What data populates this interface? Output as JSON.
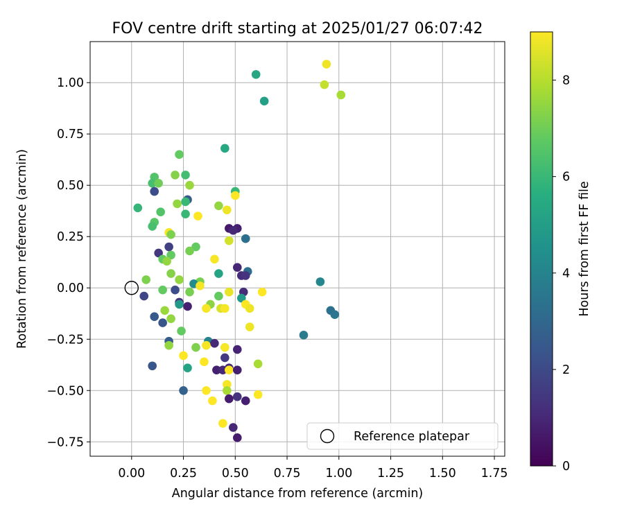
{
  "chart_data": {
    "type": "scatter",
    "title": "FOV centre drift starting at 2025/01/27 06:07:42",
    "xlabel": "Angular distance from reference (arcmin)",
    "ylabel": "Rotation from reference (arcmin)",
    "colorbar_label": "Hours from first FF file",
    "xlim": [
      -0.2,
      1.8
    ],
    "ylim": [
      -0.82,
      1.2
    ],
    "clim": [
      0,
      9
    ],
    "grid": true,
    "legend_position": "lower-right",
    "colormap": "viridis",
    "xticks": [
      0.0,
      0.25,
      0.5,
      0.75,
      1.0,
      1.25,
      1.5,
      1.75
    ],
    "xtick_labels": [
      "0.00",
      "0.25",
      "0.50",
      "0.75",
      "1.00",
      "1.25",
      "1.50",
      "1.75"
    ],
    "yticks": [
      -0.75,
      -0.5,
      -0.25,
      0.0,
      0.25,
      0.5,
      0.75,
      1.0
    ],
    "ytick_labels": [
      "−0.75",
      "−0.50",
      "−0.25",
      "0.00",
      "0.25",
      "0.50",
      "0.75",
      "1.00"
    ],
    "cticks": [
      0,
      2,
      4,
      6,
      8
    ],
    "ctick_labels": [
      "0",
      "2",
      "4",
      "6",
      "8"
    ],
    "reference": {
      "label": "Reference platepar",
      "x": 0.0,
      "y": 0.0
    },
    "points": [
      {
        "x": 0.94,
        "y": 1.09,
        "c": 8.8
      },
      {
        "x": 0.93,
        "y": 0.99,
        "c": 8.2
      },
      {
        "x": 1.01,
        "y": 0.94,
        "c": 7.8
      },
      {
        "x": 0.6,
        "y": 1.04,
        "c": 5.3
      },
      {
        "x": 0.64,
        "y": 0.91,
        "c": 5.1
      },
      {
        "x": 0.45,
        "y": 0.68,
        "c": 5.4
      },
      {
        "x": 0.23,
        "y": 0.65,
        "c": 6.8
      },
      {
        "x": 0.21,
        "y": 0.55,
        "c": 7.3
      },
      {
        "x": 0.26,
        "y": 0.55,
        "c": 6.2
      },
      {
        "x": 0.11,
        "y": 0.54,
        "c": 6.5
      },
      {
        "x": 0.1,
        "y": 0.51,
        "c": 6.3
      },
      {
        "x": 0.13,
        "y": 0.51,
        "c": 7.0
      },
      {
        "x": 0.28,
        "y": 0.5,
        "c": 7.6
      },
      {
        "x": 0.5,
        "y": 0.47,
        "c": 6.0
      },
      {
        "x": 0.11,
        "y": 0.47,
        "c": 2.1
      },
      {
        "x": 0.5,
        "y": 0.45,
        "c": 9.0
      },
      {
        "x": 0.27,
        "y": 0.43,
        "c": 2.6
      },
      {
        "x": 0.26,
        "y": 0.42,
        "c": 6.0
      },
      {
        "x": 0.22,
        "y": 0.41,
        "c": 7.5
      },
      {
        "x": 0.42,
        "y": 0.4,
        "c": 7.5
      },
      {
        "x": 0.03,
        "y": 0.39,
        "c": 5.9
      },
      {
        "x": 0.46,
        "y": 0.38,
        "c": 8.8
      },
      {
        "x": 0.14,
        "y": 0.37,
        "c": 6.5
      },
      {
        "x": 0.26,
        "y": 0.36,
        "c": 6.0
      },
      {
        "x": 0.32,
        "y": 0.35,
        "c": 9.0
      },
      {
        "x": 0.11,
        "y": 0.32,
        "c": 6.6
      },
      {
        "x": 0.1,
        "y": 0.3,
        "c": 6.3
      },
      {
        "x": 0.47,
        "y": 0.29,
        "c": 0.6
      },
      {
        "x": 0.51,
        "y": 0.29,
        "c": 0.8
      },
      {
        "x": 0.49,
        "y": 0.28,
        "c": 1.0
      },
      {
        "x": 0.18,
        "y": 0.27,
        "c": 8.9
      },
      {
        "x": 0.19,
        "y": 0.26,
        "c": 7.2
      },
      {
        "x": 0.55,
        "y": 0.24,
        "c": 3.3
      },
      {
        "x": 0.47,
        "y": 0.23,
        "c": 8.4
      },
      {
        "x": 0.31,
        "y": 0.2,
        "c": 6.8
      },
      {
        "x": 0.18,
        "y": 0.2,
        "c": 1.7
      },
      {
        "x": 0.28,
        "y": 0.18,
        "c": 7.1
      },
      {
        "x": 0.13,
        "y": 0.17,
        "c": 1.4
      },
      {
        "x": 0.19,
        "y": 0.16,
        "c": 6.8
      },
      {
        "x": 0.15,
        "y": 0.14,
        "c": 6.8
      },
      {
        "x": 0.17,
        "y": 0.13,
        "c": 7.5
      },
      {
        "x": 0.4,
        "y": 0.14,
        "c": 8.9
      },
      {
        "x": 0.51,
        "y": 0.1,
        "c": 1.0
      },
      {
        "x": 0.56,
        "y": 0.08,
        "c": 3.2
      },
      {
        "x": 0.19,
        "y": 0.07,
        "c": 7.3
      },
      {
        "x": 0.42,
        "y": 0.07,
        "c": 5.2
      },
      {
        "x": 0.53,
        "y": 0.06,
        "c": 1.1
      },
      {
        "x": 0.55,
        "y": 0.06,
        "c": 1.3
      },
      {
        "x": 0.07,
        "y": 0.04,
        "c": 7.2
      },
      {
        "x": 0.23,
        "y": 0.04,
        "c": 7.5
      },
      {
        "x": 0.33,
        "y": 0.03,
        "c": 7.1
      },
      {
        "x": 0.3,
        "y": 0.02,
        "c": 4.3
      },
      {
        "x": 0.33,
        "y": 0.01,
        "c": 8.9
      },
      {
        "x": 0.91,
        "y": 0.03,
        "c": 4.1
      },
      {
        "x": 0.15,
        "y": -0.01,
        "c": 6.8
      },
      {
        "x": 0.21,
        "y": -0.01,
        "c": 2.1
      },
      {
        "x": 0.28,
        "y": -0.02,
        "c": 7.1
      },
      {
        "x": 0.47,
        "y": -0.02,
        "c": 8.7
      },
      {
        "x": 0.54,
        "y": -0.02,
        "c": 1.1
      },
      {
        "x": 0.63,
        "y": -0.02,
        "c": 9.0
      },
      {
        "x": 0.06,
        "y": -0.04,
        "c": 1.9
      },
      {
        "x": 0.42,
        "y": -0.04,
        "c": 6.8
      },
      {
        "x": 0.53,
        "y": -0.05,
        "c": 4.8
      },
      {
        "x": 0.23,
        "y": -0.07,
        "c": 1.3
      },
      {
        "x": 0.23,
        "y": -0.08,
        "c": 4.8
      },
      {
        "x": 0.38,
        "y": -0.08,
        "c": 7.4
      },
      {
        "x": 0.55,
        "y": -0.08,
        "c": 9.0
      },
      {
        "x": 0.27,
        "y": -0.09,
        "c": 0.8
      },
      {
        "x": 0.57,
        "y": -0.1,
        "c": 8.8
      },
      {
        "x": 0.36,
        "y": -0.1,
        "c": 8.9
      },
      {
        "x": 0.43,
        "y": -0.1,
        "c": 8.5
      },
      {
        "x": 0.45,
        "y": -0.1,
        "c": 8.9
      },
      {
        "x": 0.16,
        "y": -0.11,
        "c": 7.6
      },
      {
        "x": 0.96,
        "y": -0.11,
        "c": 3.3
      },
      {
        "x": 0.98,
        "y": -0.13,
        "c": 3.5
      },
      {
        "x": 0.11,
        "y": -0.14,
        "c": 2.5
      },
      {
        "x": 0.19,
        "y": -0.15,
        "c": 7.5
      },
      {
        "x": 0.15,
        "y": -0.17,
        "c": 2.4
      },
      {
        "x": 0.57,
        "y": -0.19,
        "c": 8.8
      },
      {
        "x": 0.24,
        "y": -0.21,
        "c": 6.8
      },
      {
        "x": 0.83,
        "y": -0.23,
        "c": 3.7
      },
      {
        "x": 0.18,
        "y": -0.26,
        "c": 2.6
      },
      {
        "x": 0.37,
        "y": -0.26,
        "c": 4.0
      },
      {
        "x": 0.18,
        "y": -0.28,
        "c": 7.5
      },
      {
        "x": 0.4,
        "y": -0.27,
        "c": 1.0
      },
      {
        "x": 0.36,
        "y": -0.28,
        "c": 8.9
      },
      {
        "x": 0.31,
        "y": -0.29,
        "c": 7.2
      },
      {
        "x": 0.45,
        "y": -0.29,
        "c": 8.9
      },
      {
        "x": 0.51,
        "y": -0.3,
        "c": 0.9
      },
      {
        "x": 0.25,
        "y": -0.33,
        "c": 9.0
      },
      {
        "x": 0.45,
        "y": -0.34,
        "c": 1.5
      },
      {
        "x": 0.35,
        "y": -0.36,
        "c": 9.0
      },
      {
        "x": 0.61,
        "y": -0.37,
        "c": 7.8
      },
      {
        "x": 0.1,
        "y": -0.38,
        "c": 2.4
      },
      {
        "x": 0.27,
        "y": -0.39,
        "c": 5.2
      },
      {
        "x": 0.47,
        "y": -0.39,
        "c": 1.1
      },
      {
        "x": 0.41,
        "y": -0.4,
        "c": 0.8
      },
      {
        "x": 0.44,
        "y": -0.4,
        "c": 1.0
      },
      {
        "x": 0.47,
        "y": -0.4,
        "c": 9.0
      },
      {
        "x": 0.51,
        "y": -0.4,
        "c": 0.8
      },
      {
        "x": 0.46,
        "y": -0.47,
        "c": 8.9
      },
      {
        "x": 0.46,
        "y": -0.5,
        "c": 7.8
      },
      {
        "x": 0.25,
        "y": -0.5,
        "c": 2.8
      },
      {
        "x": 0.36,
        "y": -0.5,
        "c": 9.0
      },
      {
        "x": 0.61,
        "y": -0.52,
        "c": 9.0
      },
      {
        "x": 0.47,
        "y": -0.54,
        "c": 0.7
      },
      {
        "x": 0.51,
        "y": -0.53,
        "c": 1.3
      },
      {
        "x": 0.55,
        "y": -0.55,
        "c": 0.8
      },
      {
        "x": 0.39,
        "y": -0.55,
        "c": 9.0
      },
      {
        "x": 0.44,
        "y": -0.66,
        "c": 9.0
      },
      {
        "x": 0.49,
        "y": -0.68,
        "c": 1.0
      },
      {
        "x": 0.51,
        "y": -0.73,
        "c": 0.7
      }
    ]
  }
}
